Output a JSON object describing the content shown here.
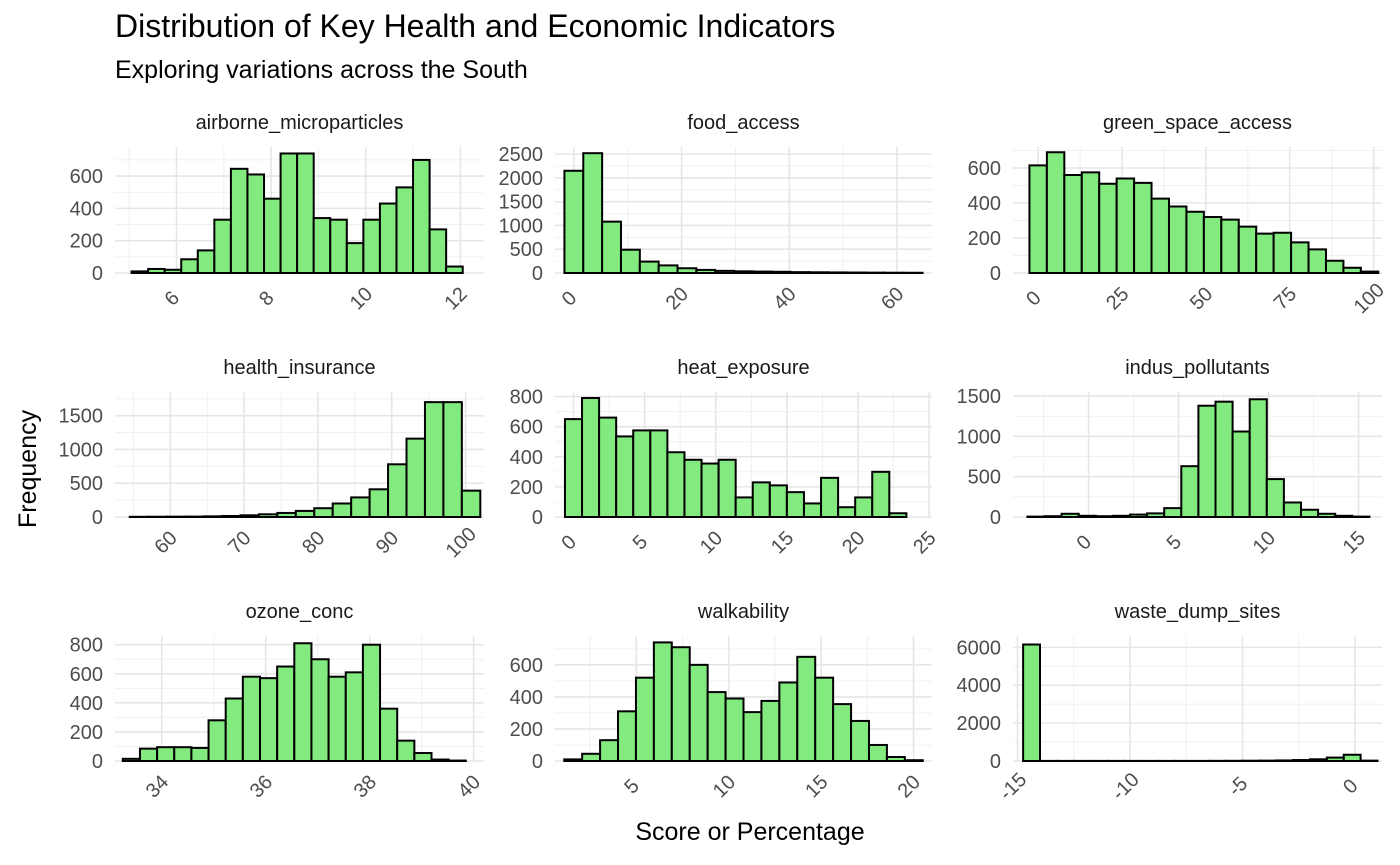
{
  "title": "Distribution of Key Health and Economic Indicators",
  "subtitle": "Exploring variations across the South",
  "xlabel": "Score or Percentage",
  "ylabel": "Frequency",
  "colors": {
    "bar_fill": "#82ea7e",
    "bar_stroke": "#000000",
    "grid": "#e6e6e6",
    "tick_text": "#4d4d4d"
  },
  "chart_data": [
    {
      "type": "bar",
      "title": "airborne_microparticles",
      "xlim": [
        4.7,
        12.5
      ],
      "ylim": [
        0,
        780
      ],
      "xticks": [
        6,
        8,
        10,
        12
      ],
      "yticks": [
        0,
        200,
        400,
        600
      ],
      "bin_start": 5.05,
      "bin_width": 0.35,
      "values": [
        10,
        25,
        20,
        85,
        140,
        330,
        645,
        610,
        460,
        740,
        740,
        340,
        330,
        185,
        330,
        430,
        530,
        700,
        270,
        40
      ]
    },
    {
      "type": "bar",
      "title": "food_access",
      "xlim": [
        -3.5,
        66.5
      ],
      "ylim": [
        0,
        2650
      ],
      "xticks": [
        0,
        20,
        40,
        60
      ],
      "yticks": [
        0,
        500,
        1000,
        1500,
        2000,
        2500
      ],
      "bin_start": -1.75,
      "bin_width": 3.5,
      "values": [
        2150,
        2520,
        1080,
        490,
        240,
        160,
        100,
        65,
        45,
        35,
        30,
        25,
        18,
        15,
        12,
        10,
        8,
        6,
        5
      ]
    },
    {
      "type": "bar",
      "title": "green_space_access",
      "xlim": [
        -7.5,
        102.5
      ],
      "ylim": [
        0,
        720
      ],
      "xticks": [
        0,
        25,
        50,
        75,
        100
      ],
      "yticks": [
        0,
        200,
        400,
        600
      ],
      "bin_start": -2.6,
      "bin_width": 5.2,
      "values": [
        615,
        690,
        560,
        575,
        510,
        540,
        515,
        425,
        380,
        350,
        320,
        305,
        265,
        225,
        230,
        175,
        135,
        70,
        30,
        8
      ]
    },
    {
      "type": "bar",
      "title": "health_insurance",
      "xlim": [
        52.5,
        102.5
      ],
      "ylim": [
        0,
        1850
      ],
      "xticks": [
        60,
        70,
        80,
        90,
        100
      ],
      "yticks": [
        0,
        500,
        1000,
        1500
      ],
      "bin_start": 54.5,
      "bin_width": 2.5,
      "values": [
        3,
        4,
        5,
        6,
        10,
        15,
        25,
        40,
        60,
        90,
        130,
        200,
        290,
        410,
        780,
        1160,
        1700,
        1700,
        390
      ]
    },
    {
      "type": "bar",
      "title": "heat_exposure",
      "xlim": [
        -1.3,
        25.2
      ],
      "ylim": [
        0,
        830
      ],
      "xticks": [
        0,
        5,
        10,
        15,
        20,
        25
      ],
      "yticks": [
        0,
        200,
        400,
        600,
        800
      ],
      "bin_start": -0.6,
      "bin_width": 1.2,
      "values": [
        650,
        790,
        660,
        535,
        575,
        575,
        430,
        380,
        355,
        380,
        130,
        230,
        210,
        165,
        90,
        260,
        65,
        130,
        300,
        25
      ]
    },
    {
      "type": "bar",
      "title": "indus_pollutants",
      "xlim": [
        -4.2,
        16.3
      ],
      "ylim": [
        0,
        1550
      ],
      "xticks": [
        0,
        5,
        10,
        15
      ],
      "yticks": [
        0,
        500,
        1000,
        1500
      ],
      "bin_start": -3.4,
      "bin_width": 0.95,
      "values": [
        5,
        10,
        40,
        15,
        10,
        15,
        30,
        45,
        110,
        630,
        1380,
        1430,
        1060,
        1460,
        470,
        180,
        90,
        40,
        15,
        5
      ]
    },
    {
      "type": "bar",
      "title": "ozone_conc",
      "xlim": [
        33.1,
        40.2
      ],
      "ylim": [
        0,
        860
      ],
      "xticks": [
        34,
        36,
        38,
        40
      ],
      "yticks": [
        0,
        200,
        400,
        600,
        800
      ],
      "bin_start": 33.25,
      "bin_width": 0.33,
      "values": [
        15,
        85,
        95,
        95,
        90,
        280,
        430,
        580,
        570,
        650,
        810,
        700,
        580,
        610,
        800,
        360,
        140,
        55,
        10,
        3
      ]
    },
    {
      "type": "bar",
      "title": "walkability",
      "xlim": [
        0.6,
        21
      ],
      "ylim": [
        0,
        780
      ],
      "xticks": [
        5,
        10,
        15,
        20
      ],
      "yticks": [
        0,
        200,
        400,
        600
      ],
      "bin_start": 1.1,
      "bin_width": 0.97,
      "values": [
        10,
        45,
        130,
        310,
        520,
        740,
        710,
        600,
        430,
        390,
        305,
        375,
        490,
        650,
        520,
        355,
        250,
        100,
        25,
        5
      ]
    },
    {
      "type": "bar",
      "title": "waste_dump_sites",
      "xlim": [
        -15.2,
        1.2
      ],
      "ylim": [
        0,
        6600
      ],
      "xticks": [
        -15,
        -10,
        -5,
        0
      ],
      "yticks": [
        0,
        2000,
        4000,
        6000
      ],
      "bin_start": -14.75,
      "bin_width": 0.75,
      "values": [
        6150,
        5,
        5,
        5,
        5,
        5,
        5,
        5,
        5,
        5,
        5,
        8,
        10,
        15,
        20,
        30,
        50,
        90,
        180,
        330,
        20
      ]
    }
  ]
}
